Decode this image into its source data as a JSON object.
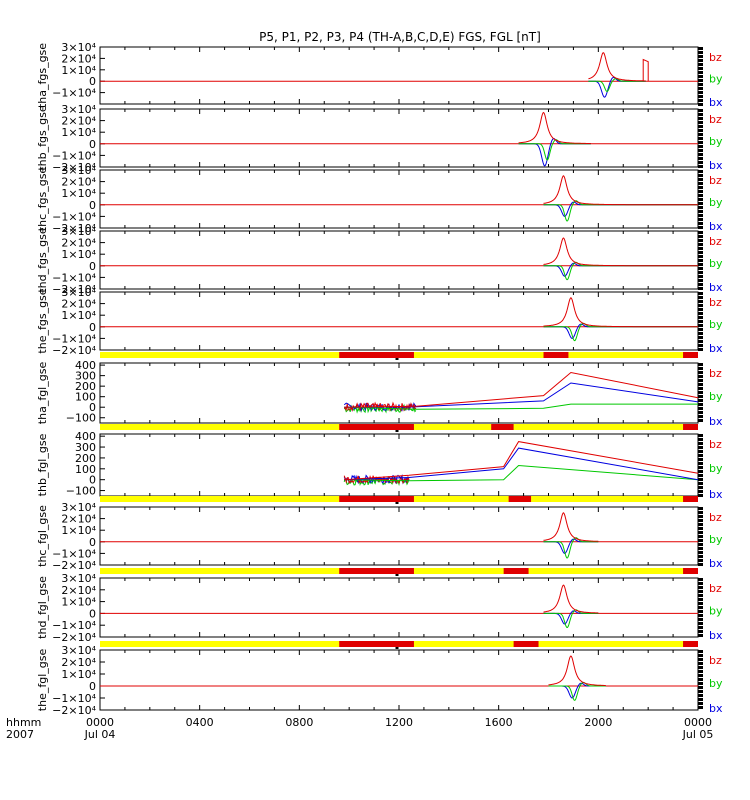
{
  "chart_data": {
    "type": "line",
    "title": "P5, P1, P2, P3, P4 (TH-A,B,C,D,E) FGS, FGL [nT]",
    "xaxis": {
      "header": [
        "hhmm",
        "2007"
      ],
      "ticks": [
        {
          "hour": 0,
          "label": "0000",
          "sub": "Jul 04"
        },
        {
          "hour": 4,
          "label": "0400",
          "sub": ""
        },
        {
          "hour": 8,
          "label": "0800",
          "sub": ""
        },
        {
          "hour": 12,
          "label": "1200",
          "sub": ""
        },
        {
          "hour": 16,
          "label": "1600",
          "sub": ""
        },
        {
          "hour": 20,
          "label": "2000",
          "sub": ""
        },
        {
          "hour": 24,
          "label": "0000",
          "sub": "Jul 05"
        }
      ],
      "range_hours": [
        0,
        24
      ]
    },
    "colors": {
      "bz": "#e00000",
      "by": "#00c800",
      "bx": "#0000e0",
      "bar_yellow": "#ffff00",
      "bar_red": "#e00000"
    },
    "legend": [
      "bz",
      "by",
      "bx"
    ],
    "panels": [
      {
        "ylabel": "tha_fgs_gse",
        "kind": "fgs",
        "ylim": [
          -20000,
          30000
        ],
        "ticklabels": [
          "3×10⁴",
          "2×10⁴",
          "1×10⁴",
          "0",
          "−1×10⁴"
        ],
        "data": {
          "start": 19.6,
          "end": 21.9,
          "peak": 20.2,
          "bz": 25000,
          "by": -9000,
          "bx": -14000
        },
        "extra": {
          "start": 21.8,
          "end": 22.0,
          "bz": 19000
        }
      },
      {
        "ylabel": "thb_fgs_gse",
        "kind": "fgs",
        "ylim": [
          -20000,
          30000
        ],
        "ticklabels": [
          "3×10⁴",
          "2×10⁴",
          "1×10⁴",
          "0",
          "−1×10⁴",
          "−2×10⁴"
        ],
        "data": {
          "start": 16.8,
          "end": 19.7,
          "peak": 17.8,
          "bz": 27000,
          "by": -14000,
          "bx": -19000
        }
      },
      {
        "ylabel": "thc_fgs_gse",
        "kind": "fgs",
        "ylim": [
          -20000,
          30000
        ],
        "ticklabels": [
          "3×10⁴",
          "2×10⁴",
          "1×10⁴",
          "0",
          "−1×10⁴",
          "−2×10⁴"
        ],
        "data": {
          "start": 17.8,
          "end": 24,
          "peak": 18.6,
          "bz": 25000,
          "by": -14000,
          "bx": -10000
        }
      },
      {
        "ylabel": "thd_fgs_gse",
        "kind": "fgs",
        "ylim": [
          -20000,
          30000
        ],
        "ticklabels": [
          "3×10⁴",
          "2×10⁴",
          "1×10⁴",
          "0",
          "−1×10⁴",
          "−2×10⁴"
        ],
        "data": {
          "start": 17.8,
          "end": 24,
          "peak": 18.6,
          "bz": 24000,
          "by": -12000,
          "bx": -9000
        }
      },
      {
        "ylabel": "the_fgs_gse",
        "kind": "fgs",
        "ylim": [
          -20000,
          30000
        ],
        "ticklabels": [
          "3×10⁴",
          "2×10⁴",
          "1×10⁴",
          "0",
          "−1×10⁴",
          "−2×10⁴"
        ],
        "data": {
          "start": 17.8,
          "end": 24,
          "peak": 18.9,
          "bz": 25000,
          "by": -12000,
          "bx": -10000
        }
      },
      {
        "ylabel": "tha_fgl_gse",
        "kind": "fgl",
        "ylim": [
          -150,
          420
        ],
        "ticks": [
          400,
          300,
          200,
          100,
          0,
          -100
        ],
        "ticklabels": [
          "400",
          "300",
          "200",
          "100",
          "0",
          "−100"
        ],
        "bar": {
          "red": [
            [
              9.6,
              12.6
            ],
            [
              17.8,
              18.8
            ],
            [
              23.4,
              24
            ]
          ],
          "marker": 11.9
        },
        "data": {
          "noise_start": 9.8,
          "noise_end": 12.7,
          "peak": 18.9,
          "bz": [
            [
              9.8,
              0
            ],
            [
              12.7,
              10
            ],
            [
              17.8,
              110
            ],
            [
              18.9,
              330
            ],
            [
              24,
              90
            ]
          ],
          "bx": [
            [
              9.8,
              0
            ],
            [
              12.7,
              5
            ],
            [
              17.8,
              60
            ],
            [
              18.9,
              230
            ],
            [
              24,
              50
            ]
          ],
          "by": [
            [
              9.8,
              0
            ],
            [
              12.7,
              -20
            ],
            [
              17.8,
              -10
            ],
            [
              18.9,
              30
            ],
            [
              24,
              30
            ]
          ]
        }
      },
      {
        "ylabel": "thb_fgl_gse",
        "kind": "fgl",
        "ylim": [
          -150,
          420
        ],
        "ticks": [
          400,
          300,
          200,
          100,
          0,
          -100
        ],
        "ticklabels": [
          "400",
          "300",
          "200",
          "100",
          "0",
          "−100"
        ],
        "bar": {
          "red": [
            [
              9.6,
              12.6
            ],
            [
              15.7,
              16.6
            ],
            [
              23.4,
              24
            ]
          ],
          "marker": 11.9
        },
        "data": {
          "noise_start": 9.8,
          "noise_end": 12.4,
          "peak": 16.8,
          "bz": [
            [
              9.8,
              0
            ],
            [
              12.4,
              40
            ],
            [
              16.2,
              120
            ],
            [
              16.8,
              350
            ],
            [
              24,
              60
            ]
          ],
          "bx": [
            [
              9.8,
              0
            ],
            [
              12.4,
              20
            ],
            [
              16.2,
              100
            ],
            [
              16.8,
              290
            ],
            [
              24,
              0
            ]
          ],
          "by": [
            [
              9.8,
              0
            ],
            [
              12.4,
              -10
            ],
            [
              16.2,
              0
            ],
            [
              16.8,
              130
            ],
            [
              24,
              0
            ]
          ]
        }
      },
      {
        "ylabel": "thc_fgl_gse",
        "kind": "fgs",
        "ylim": [
          -20000,
          30000
        ],
        "ticklabels": [
          "3×10⁴",
          "2×10⁴",
          "1×10⁴",
          "0",
          "−1×10⁴",
          "−2×10⁴"
        ],
        "bar": {
          "red": [
            [
              9.6,
              12.6
            ],
            [
              16.4,
              17.3
            ],
            [
              23.4,
              24
            ]
          ],
          "marker": 11.9
        },
        "data": {
          "start": 17.8,
          "end": 20.0,
          "peak": 18.6,
          "bz": 25000,
          "by": -14000,
          "bx": -10000
        }
      },
      {
        "ylabel": "thd_fgl_gse",
        "kind": "fgs",
        "ylim": [
          -20000,
          30000
        ],
        "ticklabels": [
          "3×10⁴",
          "2×10⁴",
          "1×10⁴",
          "0",
          "−1×10⁴",
          "−2×10⁴"
        ],
        "bar": {
          "red": [
            [
              9.6,
              12.6
            ],
            [
              16.2,
              17.2
            ],
            [
              23.4,
              24
            ]
          ],
          "marker": 11.9
        },
        "data": {
          "start": 17.8,
          "end": 20.0,
          "peak": 18.6,
          "bz": 24000,
          "by": -12000,
          "bx": -9000
        }
      },
      {
        "ylabel": "the_fgl_gse",
        "kind": "fgs",
        "ylim": [
          -20000,
          30000
        ],
        "ticklabels": [
          "3×10⁴",
          "2×10⁴",
          "1×10⁴",
          "0",
          "−1×10⁴",
          "−2×10⁴"
        ],
        "bar": {
          "red": [
            [
              9.6,
              12.6
            ],
            [
              16.6,
              17.6
            ],
            [
              23.4,
              24
            ]
          ],
          "marker": 11.9
        },
        "data": {
          "start": 18.0,
          "end": 20.3,
          "peak": 18.9,
          "bz": 25000,
          "by": -12000,
          "bx": -10000
        }
      }
    ]
  }
}
